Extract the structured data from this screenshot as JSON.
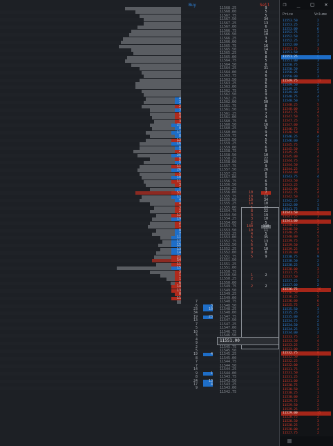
{
  "headers": {
    "buy": "Buy",
    "sell": "Sell"
  },
  "current_price": "11551.00",
  "dom": {
    "col_price": "Price",
    "col_volume": "Volume",
    "window_buttons": {
      "restore": "❐",
      "minimize": "_",
      "maximize": "□",
      "close": "✕"
    }
  },
  "ladder": [
    {
      "price": "11568.25",
      "sell": "9"
    },
    {
      "price": "11568.00",
      "sell": "5"
    },
    {
      "price": "11567.75",
      "sell": "5"
    },
    {
      "price": "11567.50",
      "sell": "34"
    },
    {
      "price": "11567.25",
      "sell": "13"
    },
    {
      "price": "11567.00",
      "sell": "6"
    },
    {
      "price": "11566.75",
      "sell": "13"
    },
    {
      "price": "11566.50",
      "sell": "10"
    },
    {
      "price": "11566.25",
      "sell": "3"
    },
    {
      "price": "11566.00",
      "sell": "4"
    },
    {
      "price": "11565.75",
      "sell": "16"
    },
    {
      "price": "11565.50",
      "sell": "14"
    },
    {
      "price": "11565.25",
      "sell": "6"
    },
    {
      "price": "11565.00",
      "sell": "8"
    },
    {
      "price": "11564.75",
      "sell": "5"
    },
    {
      "price": "11564.50",
      "sell": "6"
    },
    {
      "price": "11564.25",
      "sell": "31"
    },
    {
      "price": "11564.00",
      "sell": "4"
    },
    {
      "price": "11563.75",
      "sell": "6"
    },
    {
      "price": "11563.50",
      "sell": "9"
    },
    {
      "price": "11563.25",
      "sell": "6"
    },
    {
      "price": "11563.00",
      "sell": "8"
    },
    {
      "price": "11562.75",
      "sell": "5"
    },
    {
      "price": "11562.50",
      "sell": "9"
    },
    {
      "price": "11562.25",
      "sell": "9",
      "buy": "4",
      "buy_color": "blue"
    },
    {
      "price": "11562.00",
      "sell": "50",
      "buy": "3",
      "buy_color": "blue"
    },
    {
      "price": "11561.75",
      "sell": "8",
      "buy": "2",
      "buy_color": "red"
    },
    {
      "price": "11561.50",
      "sell": "6",
      "buy": "3",
      "buy_color": "blue"
    },
    {
      "price": "11561.25",
      "sell": "7",
      "buy": "6",
      "buy_color": "red"
    },
    {
      "price": "11561.00",
      "sell": "4",
      "buy": "4",
      "buy_color": "red"
    },
    {
      "price": "11560.75",
      "sell": "6",
      "buy": "3",
      "buy_color": "red"
    },
    {
      "price": "11560.50",
      "sell": "16",
      "buy": "21",
      "buy_color": "blue"
    },
    {
      "price": "11560.25",
      "sell": "9",
      "buy": "0",
      "buy_color": "blue"
    },
    {
      "price": "11560.00",
      "sell": "9",
      "buy": "17",
      "buy_color": "blue"
    },
    {
      "price": "11559.75",
      "sell": "4",
      "buy": "8",
      "buy_color": "blue"
    },
    {
      "price": "11559.50",
      "sell": "5",
      "buy": "13",
      "buy_color": "red"
    },
    {
      "price": "11559.25",
      "sell": "5",
      "buy": "16",
      "buy_color": "blue"
    },
    {
      "price": "11559.00",
      "sell": "6",
      "buy": "8",
      "buy_color": "blue"
    },
    {
      "price": "11558.75",
      "sell": "9",
      "buy": "2",
      "buy_color": "red"
    },
    {
      "price": "11558.50",
      "sell": "10",
      "buy": "26",
      "buy_color": "blue"
    },
    {
      "price": "11558.25",
      "sell": "22",
      "buy": "8",
      "buy_color": "red"
    },
    {
      "price": "11558.00",
      "sell": "20",
      "buy": "5",
      "buy_color": "blue"
    },
    {
      "price": "11557.75",
      "sell": "9",
      "buy": "11",
      "buy_color": "red"
    },
    {
      "price": "11557.50",
      "sell": "26",
      "buy": "26",
      "buy_color": "blue"
    },
    {
      "price": "11557.25",
      "sell": "8",
      "buy": "5",
      "buy_color": "red"
    },
    {
      "price": "11557.00",
      "sell": "9",
      "buy": "10",
      "buy_color": "blue"
    },
    {
      "price": "11556.75",
      "sell": "6",
      "buy": "11",
      "buy_color": "red"
    },
    {
      "price": "11556.50",
      "sell": "9",
      "buy": "3",
      "buy_color": "red"
    },
    {
      "price": "11556.25",
      "sell": "9",
      "buy": "7",
      "buy_color": "blue"
    },
    {
      "price": "11556.00",
      "sell": "7",
      "buy": "53",
      "buy_color": "red",
      "bar_hl": true,
      "sell_color": "red",
      "buy2": "10"
    },
    {
      "price": "11555.75",
      "sell": "17",
      "buy": "13",
      "buy_color": "blue",
      "buy2": "10"
    },
    {
      "price": "11555.50",
      "sell": "34",
      "buy": "4",
      "buy_color": "blue",
      "buy2": "10"
    },
    {
      "price": "11555.25",
      "sell": "10",
      "buy": "4",
      "buy_color": "red",
      "buy2": "14"
    },
    {
      "price": "11555.00",
      "sell": "23",
      "buy": "3",
      "buy_color": "red",
      "buy2": "5"
    },
    {
      "price": "11554.75",
      "sell": "22",
      "buy": "2",
      "buy_color": "red",
      "buy2": "8"
    },
    {
      "price": "11554.50",
      "sell": "19",
      "buy": "12",
      "buy_color": "red",
      "buy2": "3"
    },
    {
      "price": "11554.25",
      "sell": "10",
      "buy": "19",
      "buy_color": "blue",
      "buy2": "3"
    },
    {
      "price": "11554.00",
      "sell": "5",
      "buy": "2",
      "buy_color": "red",
      "buy2": "2"
    },
    {
      "price": "11553.75",
      "sell": "110",
      "buy": "1",
      "buy_color": "red",
      "buy2": "140",
      "sell_color": "gray"
    },
    {
      "price": "11553.50",
      "sell": "11",
      "buy": "8",
      "buy_color": "blue",
      "buy2": "10"
    },
    {
      "price": "11553.25",
      "sell": "5",
      "buy": "7",
      "buy_color": "blue",
      "buy2": "4"
    },
    {
      "price": "11553.00",
      "sell": "35",
      "buy": "11",
      "buy_color": "blue",
      "buy2": "6"
    },
    {
      "price": "11552.75",
      "sell": "13",
      "buy": "17",
      "buy_color": "blue",
      "buy2": "5"
    },
    {
      "price": "11552.50",
      "sell": "9",
      "buy": "15",
      "buy_color": "blue",
      "buy2": "6"
    },
    {
      "price": "11552.25",
      "sell": "10",
      "buy": "13",
      "buy_color": "blue",
      "buy2": "4"
    },
    {
      "price": "11552.00",
      "sell": "8",
      "buy": "14",
      "buy_color": "blue",
      "buy2": "9"
    },
    {
      "price": "11551.75",
      "sell": "9",
      "buy": "21",
      "buy_color": "red",
      "buy2": "5"
    },
    {
      "price": "11551.50",
      "sell": "",
      "buy": "54",
      "buy_color": "red",
      "bar_hl": true
    },
    {
      "price": "11551.25",
      "sell": "",
      "buy": "11",
      "buy_color": "red"
    },
    {
      "price": "11551.00",
      "sell": "",
      "buy": "15",
      "buy_color": "blue"
    },
    {
      "price": "11550.75",
      "sell": "",
      "buy": "3",
      "buy_color": "red"
    },
    {
      "price": "11550.50",
      "sell": "2",
      "buy": "1",
      "buy_color": "red",
      "buy2": "1"
    },
    {
      "price": "11550.25",
      "sell": "",
      "buy": "1",
      "buy_color": "red",
      "buy2": "2"
    },
    {
      "price": "11550.00",
      "sell": "",
      "buy": "6",
      "buy_color": "red"
    },
    {
      "price": "11549.75",
      "sell": "2",
      "buy": "14",
      "buy_color": "red",
      "buy2": "2"
    },
    {
      "price": "11549.50",
      "sell": "",
      "buy": "13",
      "buy_color": "red"
    },
    {
      "price": "11549.25",
      "sell": "",
      "buy": "0",
      "buy_color": "red"
    },
    {
      "price": "11549.00",
      "sell": "",
      "buy": "11",
      "buy_color": "red"
    },
    {
      "price": "11548.75",
      "buy": "7",
      "buy_color": "plain"
    },
    {
      "price": "11548.50",
      "buy": "6",
      "buy_color": "plain",
      "extra": "3"
    },
    {
      "price": "11548.25",
      "buy": "23",
      "buy_color": "plain",
      "extra": "10"
    },
    {
      "price": "11548.00",
      "buy": "34",
      "buy_color": "plain"
    },
    {
      "price": "11547.75",
      "buy": "19",
      "buy_color": "plain",
      "extra": "23"
    },
    {
      "price": "11547.50",
      "buy": "13",
      "buy_color": "plain"
    },
    {
      "price": "11547.25",
      "buy": "7",
      "buy_color": "plain"
    },
    {
      "price": "11547.00",
      "buy": "5",
      "buy_color": "plain"
    },
    {
      "price": "11546.75",
      "buy": "10",
      "buy_color": "plain"
    },
    {
      "price": "11546.50",
      "buy": "3",
      "buy_color": "plain"
    },
    {
      "price": "11546.25",
      "buy": "4",
      "buy_color": "plain"
    },
    {
      "price": "11546.00",
      "buy": "9",
      "buy_color": "plain"
    },
    {
      "price": "11545.75",
      "buy": "2",
      "buy_color": "plain"
    },
    {
      "price": "11545.50",
      "buy": "5",
      "buy_color": "plain"
    },
    {
      "price": "11545.25",
      "buy": "19",
      "buy_color": "plain",
      "extra": "4"
    },
    {
      "price": "11545.00",
      "buy": "8",
      "buy_color": "plain"
    },
    {
      "price": "11544.75",
      "buy": "7",
      "buy_color": "plain"
    },
    {
      "price": "11544.50",
      "buy": "7",
      "buy_color": "plain"
    },
    {
      "price": "11544.25",
      "buy": "14",
      "buy_color": "plain"
    },
    {
      "price": "11544.00",
      "buy": "9",
      "buy_color": "plain",
      "extra": "1"
    },
    {
      "price": "11543.75",
      "buy": "8",
      "buy_color": "plain"
    },
    {
      "price": "11543.50",
      "buy": "24",
      "buy_color": "plain",
      "extra": "13"
    },
    {
      "price": "11543.25",
      "buy": "17",
      "buy_color": "plain",
      "extra": "4"
    },
    {
      "price": "11543.00",
      "buy": "9",
      "buy_color": "plain"
    },
    {
      "price": "11542.75",
      "buy": "",
      "buy_color": "plain"
    }
  ],
  "profile": [
    54,
    44,
    40,
    36,
    36,
    42,
    48,
    50,
    56,
    58,
    60,
    48,
    46,
    52,
    54,
    48,
    40,
    38,
    36,
    40,
    44,
    44,
    38,
    36,
    34,
    36,
    38,
    30,
    30,
    28,
    26,
    30,
    28,
    34,
    30,
    34,
    40,
    40,
    46,
    42,
    30,
    36,
    40,
    42,
    40,
    38,
    36,
    34,
    30,
    44,
    38,
    40,
    30,
    26,
    30,
    24,
    28,
    30,
    32,
    24,
    28,
    20,
    18,
    22,
    20,
    24,
    26,
    28,
    24,
    62,
    30,
    20,
    14,
    10,
    8,
    6,
    4,
    4,
    4
  ],
  "dom_rows": [
    {
      "price": "11553.50",
      "vol": "2",
      "side": "bid"
    },
    {
      "price": "11553.25",
      "vol": "2",
      "side": "bid"
    },
    {
      "price": "11553.00",
      "vol": "6",
      "side": "bid"
    },
    {
      "price": "11552.75",
      "vol": "2",
      "side": "bid"
    },
    {
      "price": "11552.50",
      "vol": "2",
      "side": "bid"
    },
    {
      "price": "11552.25",
      "vol": "2",
      "side": "bid"
    },
    {
      "price": "11552.00",
      "vol": "3",
      "side": "bid"
    },
    {
      "price": "11551.75",
      "vol": "3",
      "side": "ask"
    },
    {
      "price": "11551.50",
      "vol": "3",
      "side": "bid"
    },
    {
      "price": "11551.25",
      "vol": "6",
      "side": "bid",
      "hl": "blue"
    },
    {
      "price": "11551.00",
      "vol": "3",
      "side": "bid"
    },
    {
      "price": "11550.75",
      "vol": "2",
      "side": "bid"
    },
    {
      "price": "11550.50",
      "vol": "2",
      "side": "bid"
    },
    {
      "price": "11550.25",
      "vol": "2",
      "side": "bid"
    },
    {
      "price": "11550.00",
      "vol": "3",
      "side": "bid"
    },
    {
      "price": "11549.75",
      "vol": "13",
      "side": "ask",
      "hl": "red"
    },
    {
      "price": "11549.50",
      "vol": "2",
      "side": "bid"
    },
    {
      "price": "11549.25",
      "vol": "2",
      "side": "bid"
    },
    {
      "price": "11549.00",
      "vol": "3",
      "side": "bid"
    },
    {
      "price": "11548.75",
      "vol": "4",
      "side": "bid"
    },
    {
      "price": "11548.50",
      "vol": "7",
      "side": "bid"
    },
    {
      "price": "11548.25",
      "vol": "5",
      "side": "ask"
    },
    {
      "price": "11548.00",
      "vol": "3",
      "side": "ask"
    },
    {
      "price": "11547.75",
      "vol": "4",
      "side": "ask"
    },
    {
      "price": "11547.50",
      "vol": "5",
      "side": "ask"
    },
    {
      "price": "11547.25",
      "vol": "2",
      "side": "ask"
    },
    {
      "price": "11547.00",
      "vol": "4",
      "side": "ask"
    },
    {
      "price": "11546.75",
      "vol": "3",
      "side": "ask"
    },
    {
      "price": "11546.50",
      "vol": "8",
      "side": "ask"
    },
    {
      "price": "11546.25",
      "vol": "4",
      "side": "bid"
    },
    {
      "price": "11546.00",
      "vol": "2",
      "side": "bid"
    },
    {
      "price": "11545.75",
      "vol": "3",
      "side": "ask"
    },
    {
      "price": "11545.50",
      "vol": "2",
      "side": "ask"
    },
    {
      "price": "11545.25",
      "vol": "1",
      "side": "ask"
    },
    {
      "price": "11545.00",
      "vol": "4",
      "side": "ask"
    },
    {
      "price": "11544.75",
      "vol": "3",
      "side": "ask"
    },
    {
      "price": "11544.50",
      "vol": "2",
      "side": "ask"
    },
    {
      "price": "11544.25",
      "vol": "4",
      "side": "ask"
    },
    {
      "price": "11544.00",
      "vol": "2",
      "side": "ask"
    },
    {
      "price": "11543.75",
      "vol": "4",
      "side": "bid"
    },
    {
      "price": "11543.50",
      "vol": "1",
      "side": "ask"
    },
    {
      "price": "11543.25",
      "vol": "3",
      "side": "ask"
    },
    {
      "price": "11543.00",
      "vol": "2",
      "side": "ask"
    },
    {
      "price": "11542.75",
      "vol": "4",
      "side": "ask"
    },
    {
      "price": "11542.50",
      "vol": "3",
      "side": "ask"
    },
    {
      "price": "11542.25",
      "vol": "2",
      "side": "bid"
    },
    {
      "price": "11542.00",
      "vol": "1",
      "side": "bid"
    },
    {
      "price": "11541.75",
      "vol": "5",
      "side": "bid"
    },
    {
      "price": "11541.50",
      "vol": "9",
      "side": "ask",
      "hl": "red"
    },
    {
      "price": "11541.25",
      "vol": "3",
      "side": "ask"
    },
    {
      "price": "11541.00",
      "vol": "5",
      "side": "ask",
      "hl": "red"
    },
    {
      "price": "11540.75",
      "vol": "4",
      "side": "ask"
    },
    {
      "price": "11540.50",
      "vol": "2",
      "side": "ask"
    },
    {
      "price": "11540.25",
      "vol": "4",
      "side": "ask"
    },
    {
      "price": "11540.00",
      "vol": "5",
      "side": "ask"
    },
    {
      "price": "11539.75",
      "vol": "3",
      "side": "ask"
    },
    {
      "price": "11539.50",
      "vol": "4",
      "side": "ask"
    },
    {
      "price": "11539.25",
      "vol": "8",
      "side": "ask"
    },
    {
      "price": "11539.00",
      "vol": "3",
      "side": "ask"
    },
    {
      "price": "11538.75",
      "vol": "9",
      "side": "bid"
    },
    {
      "price": "11538.50",
      "vol": "2",
      "side": "bid"
    },
    {
      "price": "11538.25",
      "vol": "3",
      "side": "bid"
    },
    {
      "price": "11538.00",
      "vol": "3",
      "side": "ask"
    },
    {
      "price": "11537.75",
      "vol": "2",
      "side": "ask"
    },
    {
      "price": "11537.50",
      "vol": "2",
      "side": "ask"
    },
    {
      "price": "11537.25",
      "vol": "5",
      "side": "bid"
    },
    {
      "price": "11537.00",
      "vol": "2",
      "side": "bid"
    },
    {
      "price": "11536.75",
      "vol": "36",
      "side": "ask",
      "hl": "red"
    },
    {
      "price": "11536.50",
      "vol": "5",
      "side": "ask"
    },
    {
      "price": "11536.25",
      "vol": "5",
      "side": "ask"
    },
    {
      "price": "11536.00",
      "vol": "6",
      "side": "ask"
    },
    {
      "price": "11535.75",
      "vol": "2",
      "side": "ask"
    },
    {
      "price": "11535.50",
      "vol": "3",
      "side": "bid"
    },
    {
      "price": "11535.25",
      "vol": "2",
      "side": "bid"
    },
    {
      "price": "11535.00",
      "vol": "4",
      "side": "bid"
    },
    {
      "price": "11534.75",
      "vol": "2",
      "side": "bid"
    },
    {
      "price": "11534.50",
      "vol": "5",
      "side": "bid"
    },
    {
      "price": "11534.25",
      "vol": "3",
      "side": "bid"
    },
    {
      "price": "11534.00",
      "vol": "2",
      "side": "bid"
    },
    {
      "price": "11533.75",
      "vol": "2",
      "side": "ask"
    },
    {
      "price": "11533.50",
      "vol": "4",
      "side": "ask"
    },
    {
      "price": "11533.25",
      "vol": "3",
      "side": "ask"
    },
    {
      "price": "11533.00",
      "vol": "2",
      "side": "ask"
    },
    {
      "price": "11532.75",
      "vol": "8",
      "side": "ask",
      "hl": "red"
    },
    {
      "price": "11532.50",
      "vol": "1",
      "side": "ask"
    },
    {
      "price": "11532.25",
      "vol": "3",
      "side": "ask"
    },
    {
      "price": "11532.00",
      "vol": "2",
      "side": "ask"
    },
    {
      "price": "11531.75",
      "vol": "3",
      "side": "ask"
    },
    {
      "price": "11531.50",
      "vol": "4",
      "side": "ask"
    },
    {
      "price": "11531.25",
      "vol": "3",
      "side": "ask"
    },
    {
      "price": "11531.00",
      "vol": "2",
      "side": "ask"
    },
    {
      "price": "11530.75",
      "vol": "5",
      "side": "ask"
    },
    {
      "price": "11530.50",
      "vol": "3",
      "side": "ask"
    },
    {
      "price": "11530.25",
      "vol": "1",
      "side": "ask"
    },
    {
      "price": "11530.00",
      "vol": "2",
      "side": "ask"
    },
    {
      "price": "11529.75",
      "vol": "3",
      "side": "ask"
    },
    {
      "price": "11529.50",
      "vol": "2",
      "side": "ask"
    },
    {
      "price": "11529.25",
      "vol": "2",
      "side": "ask"
    },
    {
      "price": "11529.00",
      "vol": "15",
      "side": "ask",
      "hl": "red"
    },
    {
      "price": "11528.75",
      "vol": "2",
      "side": "ask"
    },
    {
      "price": "11528.50",
      "vol": "3",
      "side": "ask"
    },
    {
      "price": "11528.25",
      "vol": "3",
      "side": "ask"
    },
    {
      "price": "11528.00",
      "vol": "4",
      "side": "ask"
    },
    {
      "price": "11527.75",
      "vol": "2",
      "side": "ask"
    }
  ]
}
